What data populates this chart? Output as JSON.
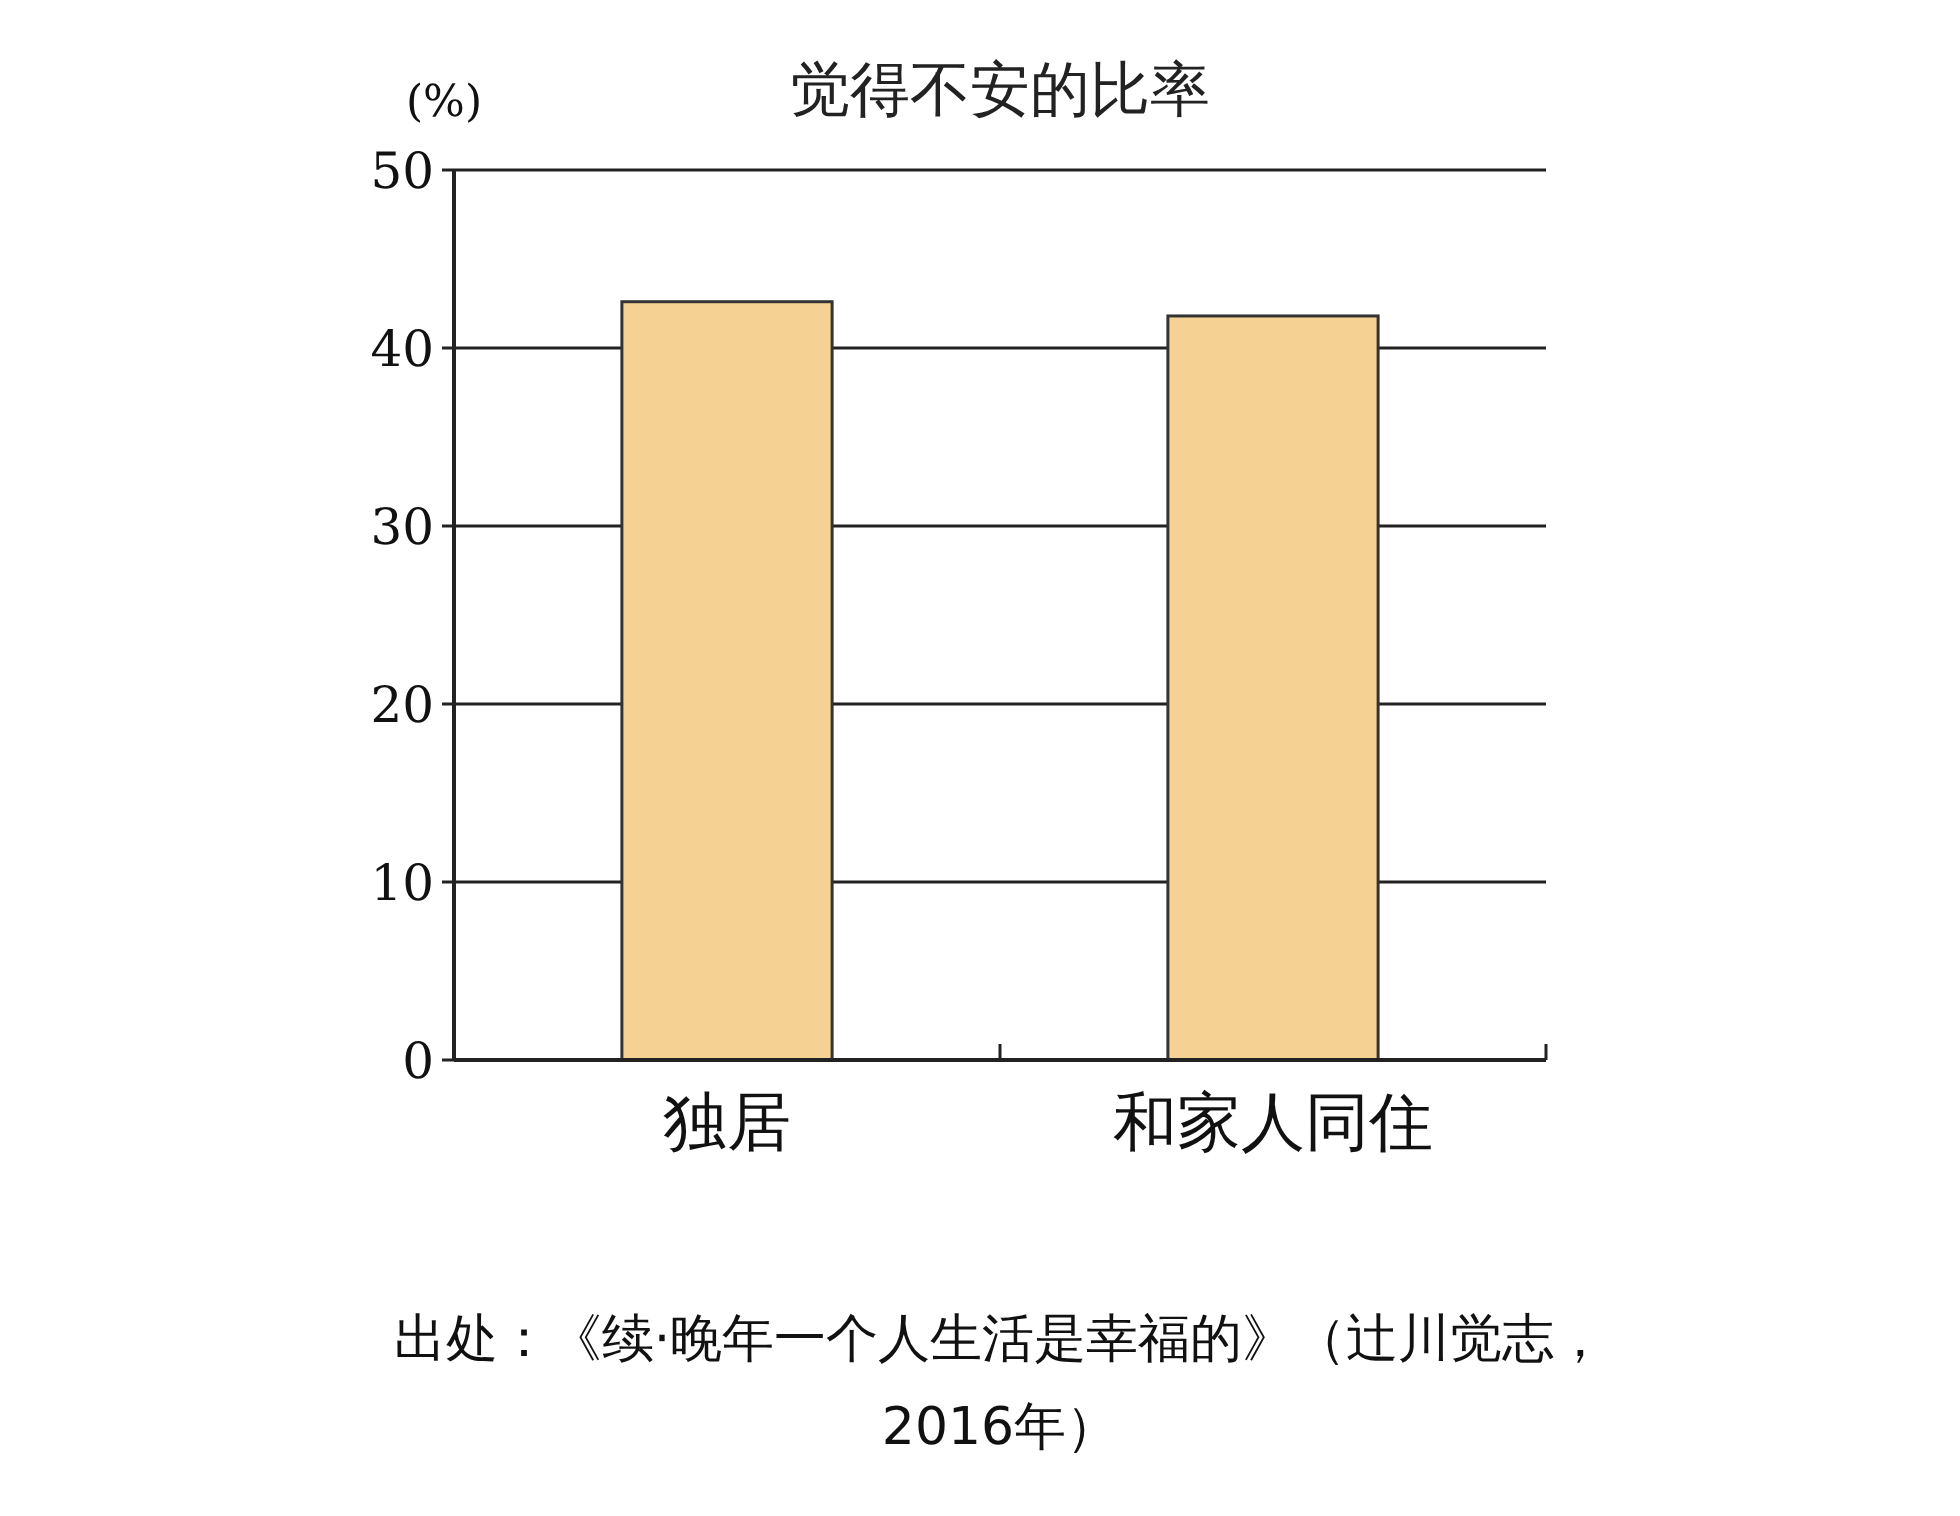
{
  "chart_data": {
    "type": "bar",
    "title": "觉得不安的比率",
    "ylabel": "(%)",
    "categories": [
      "独居",
      "和家人同住"
    ],
    "values": [
      42.6,
      41.8
    ],
    "color": "#f5d293",
    "ylim": [
      0,
      50
    ],
    "yticks": [
      0,
      10,
      20,
      30,
      40,
      50
    ],
    "grid": "y",
    "annotations": [
      "出处：《续·晚年一个人生活是幸福的》（辻川觉志，2016年）"
    ]
  }
}
